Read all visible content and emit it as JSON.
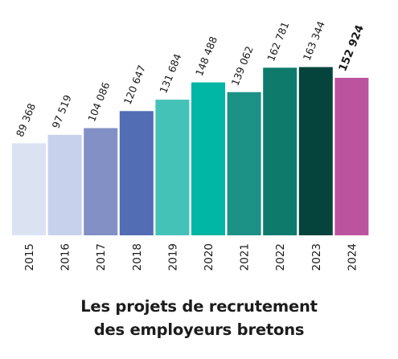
{
  "chart_data": {
    "type": "bar",
    "title_lines": [
      "Les projets de recrutement",
      "des employeurs bretons"
    ],
    "categories": [
      "2015",
      "2016",
      "2017",
      "2018",
      "2019",
      "2020",
      "2021",
      "2022",
      "2023",
      "2024"
    ],
    "values": [
      89368,
      97519,
      104086,
      120647,
      131684,
      148488,
      139062,
      162781,
      163344,
      152924
    ],
    "value_labels": [
      "89 368",
      "97 519",
      "104 086",
      "120 647",
      "131 684",
      "148 488",
      "139 062",
      "162 781",
      "163 344",
      "152 924"
    ],
    "bold_category": "2024",
    "colors": [
      "#dbe3f3",
      "#c8d1ec",
      "#8390c6",
      "#526db3",
      "#44c2b8",
      "#00b6a5",
      "#1c9185",
      "#0d7a6c",
      "#05443d",
      "#bb539e"
    ],
    "xlabel": "",
    "ylabel": "",
    "ylim": [
      0,
      170000
    ],
    "grid": false,
    "legend": false
  }
}
